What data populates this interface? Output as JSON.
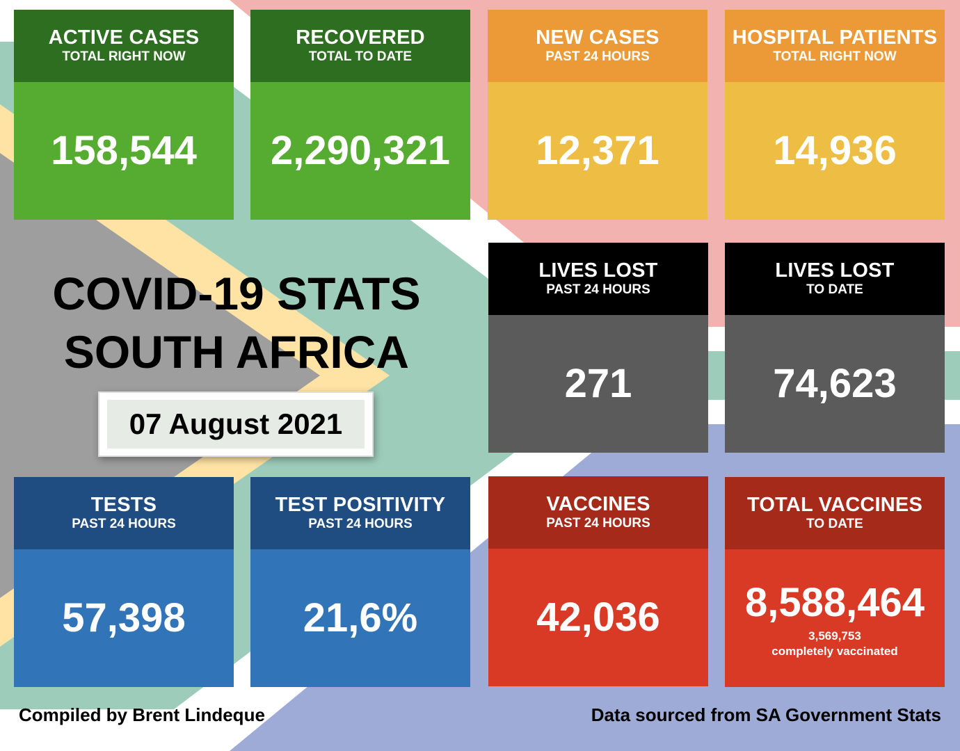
{
  "title": {
    "line1": "COVID-19 STATS",
    "line2": "SOUTH AFRICA"
  },
  "date": "07 August 2021",
  "tiles": {
    "active": {
      "label": "ACTIVE CASES",
      "sublabel": "TOTAL RIGHT NOW",
      "value": "158,544"
    },
    "recovered": {
      "label": "RECOVERED",
      "sublabel": "TOTAL TO DATE",
      "value": "2,290,321"
    },
    "new_cases": {
      "label": "NEW CASES",
      "sublabel": "PAST 24 HOURS",
      "value": "12,371"
    },
    "hospital": {
      "label": "HOSPITAL PATIENTS",
      "sublabel": "TOTAL RIGHT NOW",
      "value": "14,936"
    },
    "lives_24h": {
      "label": "LIVES LOST",
      "sublabel": "PAST 24 HOURS",
      "value": "271"
    },
    "lives_total": {
      "label": "LIVES LOST",
      "sublabel": "TO DATE",
      "value": "74,623"
    },
    "tests": {
      "label": "TESTS",
      "sublabel": "PAST 24 HOURS",
      "value": "57,398"
    },
    "positivity": {
      "label": "TEST POSITIVITY",
      "sublabel": "PAST 24 HOURS",
      "value": "21,6%"
    },
    "vaccines": {
      "label": "VACCINES",
      "sublabel": "PAST 24 HOURS",
      "value": "42,036"
    },
    "total_vaccines": {
      "label": "TOTAL VACCINES",
      "sublabel": "TO DATE",
      "value": "8,588,464",
      "note_value": "3,569,753",
      "note_text": "completely vaccinated"
    }
  },
  "footer": {
    "left": "Compiled by Brent Lindeque",
    "right": "Data sourced from SA Government Stats"
  },
  "colors": {
    "green_head": "#2e6e20",
    "green_body": "#55ac31",
    "orange_head": "#ec9a38",
    "orange_body": "#eebd43",
    "black_head": "#000000",
    "black_body": "#5b5b5b",
    "blue_head": "#1f4d82",
    "blue_body": "#3274b8",
    "red_head": "#a52a1a",
    "red_body": "#d83a26"
  }
}
